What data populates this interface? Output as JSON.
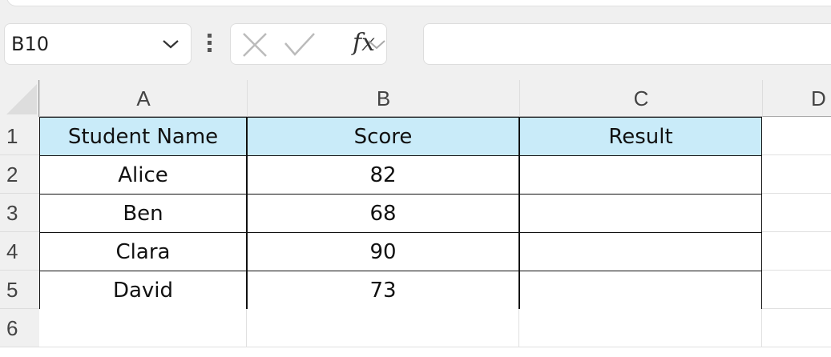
{
  "name_box": {
    "value": "B10"
  },
  "formula_bar": {
    "cancel_icon": "x-icon",
    "enter_icon": "check-icon",
    "fx_label": "fx",
    "value": ""
  },
  "columns": [
    "A",
    "B",
    "C",
    "D"
  ],
  "rows": [
    "1",
    "2",
    "3",
    "4",
    "5",
    "6"
  ],
  "table": {
    "headers": [
      "Student Name",
      "Score",
      "Result"
    ],
    "rows": [
      [
        "Alice",
        "82",
        ""
      ],
      [
        "Ben",
        "68",
        ""
      ],
      [
        "Clara",
        "90",
        ""
      ],
      [
        "David",
        "73",
        ""
      ]
    ]
  },
  "colors": {
    "header_fill": "#c9ebf9"
  }
}
